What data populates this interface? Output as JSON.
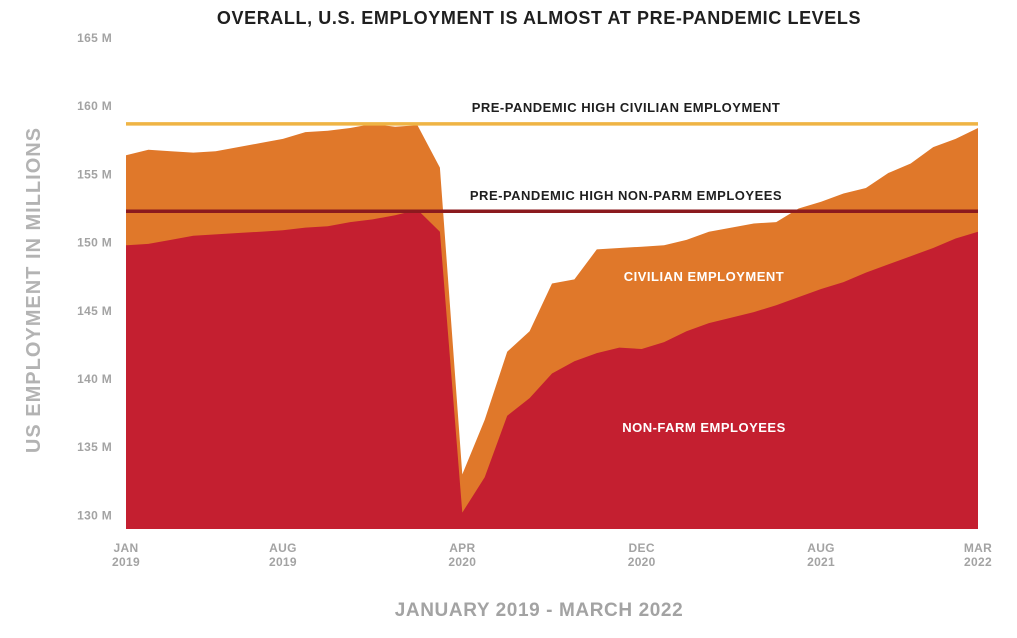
{
  "chart_data": {
    "type": "area",
    "title": "OVERALL, U.S. EMPLOYMENT IS ALMOST AT PRE-PANDEMIC LEVELS",
    "ylabel": "US EMPLOYMENT IN MILLIONS",
    "xlabel": "JANUARY 2019 - MARCH 2022",
    "ylim": [
      129,
      165
    ],
    "xlim": [
      0,
      38
    ],
    "y_ticks": [
      {
        "value": 130,
        "label": "130 M"
      },
      {
        "value": 135,
        "label": "135 M"
      },
      {
        "value": 140,
        "label": "140 M"
      },
      {
        "value": 145,
        "label": "145 M"
      },
      {
        "value": 150,
        "label": "150 M"
      },
      {
        "value": 155,
        "label": "155 M"
      },
      {
        "value": 160,
        "label": "160 M"
      },
      {
        "value": 165,
        "label": "165 M"
      }
    ],
    "x_ticks": [
      {
        "index": 0,
        "line1": "JAN",
        "line2": "2019"
      },
      {
        "index": 7,
        "line1": "AUG",
        "line2": "2019"
      },
      {
        "index": 15,
        "line1": "APR",
        "line2": "2020"
      },
      {
        "index": 23,
        "line1": "DEC",
        "line2": "2020"
      },
      {
        "index": 31,
        "line1": "AUG",
        "line2": "2021"
      },
      {
        "index": 38,
        "line1": "MAR",
        "line2": "2022"
      }
    ],
    "x": [
      0,
      1,
      2,
      3,
      4,
      5,
      6,
      7,
      8,
      9,
      10,
      11,
      12,
      13,
      14,
      15,
      16,
      17,
      18,
      19,
      20,
      21,
      22,
      23,
      24,
      25,
      26,
      27,
      28,
      29,
      30,
      31,
      32,
      33,
      34,
      35,
      36,
      37,
      38
    ],
    "series": [
      {
        "name": "CIVILIAN EMPLOYMENT",
        "color": "#e0782a",
        "values": [
          156.4,
          156.8,
          156.7,
          156.6,
          156.7,
          157.0,
          157.3,
          157.6,
          158.1,
          158.2,
          158.4,
          158.7,
          158.5,
          158.6,
          155.5,
          133.0,
          137.0,
          142.0,
          143.5,
          147.0,
          147.3,
          149.5,
          149.6,
          149.7,
          149.8,
          150.2,
          150.8,
          151.1,
          151.4,
          151.5,
          152.5,
          153.0,
          153.6,
          154.0,
          155.1,
          155.8,
          157.0,
          157.6,
          158.4
        ]
      },
      {
        "name": "NON-FARM EMPLOYEES",
        "color": "#c41f30",
        "values": [
          149.8,
          149.9,
          150.2,
          150.5,
          150.6,
          150.7,
          150.8,
          150.9,
          151.1,
          151.2,
          151.5,
          151.7,
          152.0,
          152.4,
          150.8,
          130.2,
          132.8,
          137.3,
          138.6,
          140.4,
          141.3,
          141.9,
          142.3,
          142.2,
          142.7,
          143.5,
          144.1,
          144.5,
          144.9,
          145.4,
          146.0,
          146.6,
          147.1,
          147.8,
          148.4,
          149.0,
          149.6,
          150.3,
          150.8
        ]
      }
    ],
    "reference_lines": [
      {
        "name": "PRE-PANDEMIC HIGH CIVILIAN EMPLOYMENT",
        "value": 158.7,
        "color": "#efb445"
      },
      {
        "name": "PRE-PANDEMIC HIGH NON-PARM EMPLOYEES",
        "value": 152.3,
        "color": "#8b1a1e"
      }
    ],
    "annotations": [
      {
        "text": "CIVILIAN EMPLOYMENT",
        "color": "#ffffff"
      },
      {
        "text": "NON-FARM EMPLOYEES",
        "color": "#ffffff"
      }
    ]
  }
}
